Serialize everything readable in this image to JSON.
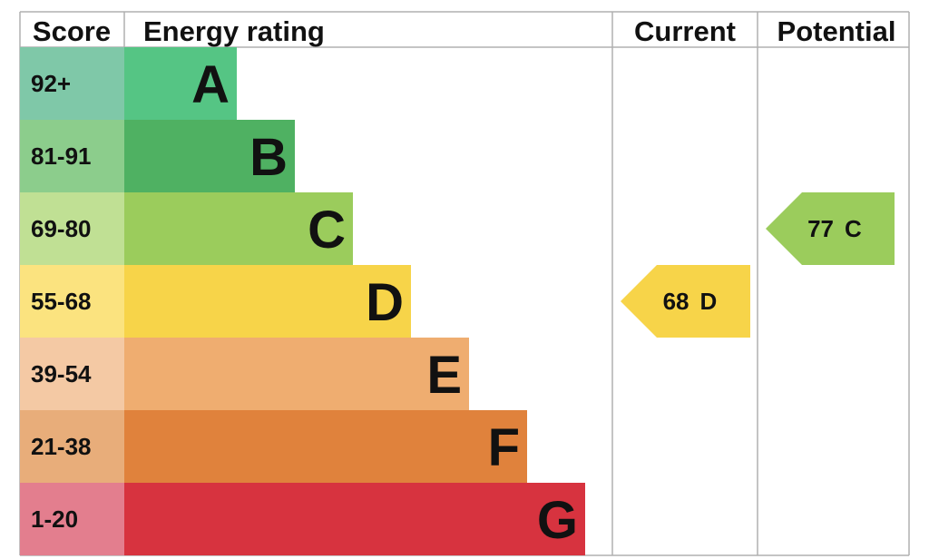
{
  "chart_data": {
    "type": "bar",
    "headers": {
      "score": "Score",
      "rating": "Energy rating",
      "current": "Current",
      "potential": "Potential"
    },
    "bands": [
      {
        "score": "92+",
        "letter": "A",
        "min": 92,
        "max": 100,
        "score_color": "#7fc8a8",
        "bar_color": "#55c584"
      },
      {
        "score": "81-91",
        "letter": "B",
        "min": 81,
        "max": 91,
        "score_color": "#8ccd8c",
        "bar_color": "#4fb162"
      },
      {
        "score": "69-80",
        "letter": "C",
        "min": 69,
        "max": 80,
        "score_color": "#c0e094",
        "bar_color": "#9bcc5c"
      },
      {
        "score": "55-68",
        "letter": "D",
        "min": 55,
        "max": 68,
        "score_color": "#fbe37f",
        "bar_color": "#f7d449"
      },
      {
        "score": "39-54",
        "letter": "E",
        "min": 39,
        "max": 54,
        "score_color": "#f4c9a4",
        "bar_color": "#efad70"
      },
      {
        "score": "21-38",
        "letter": "F",
        "min": 21,
        "max": 38,
        "score_color": "#e8ad7a",
        "bar_color": "#e0823c"
      },
      {
        "score": "1-20",
        "letter": "G",
        "min": 1,
        "max": 20,
        "score_color": "#e37e8e",
        "bar_color": "#d7333f"
      }
    ],
    "current": {
      "value": 68,
      "letter": "D",
      "color": "#f7d449"
    },
    "potential": {
      "value": 77,
      "letter": "C",
      "color": "#9bcc5c"
    }
  }
}
